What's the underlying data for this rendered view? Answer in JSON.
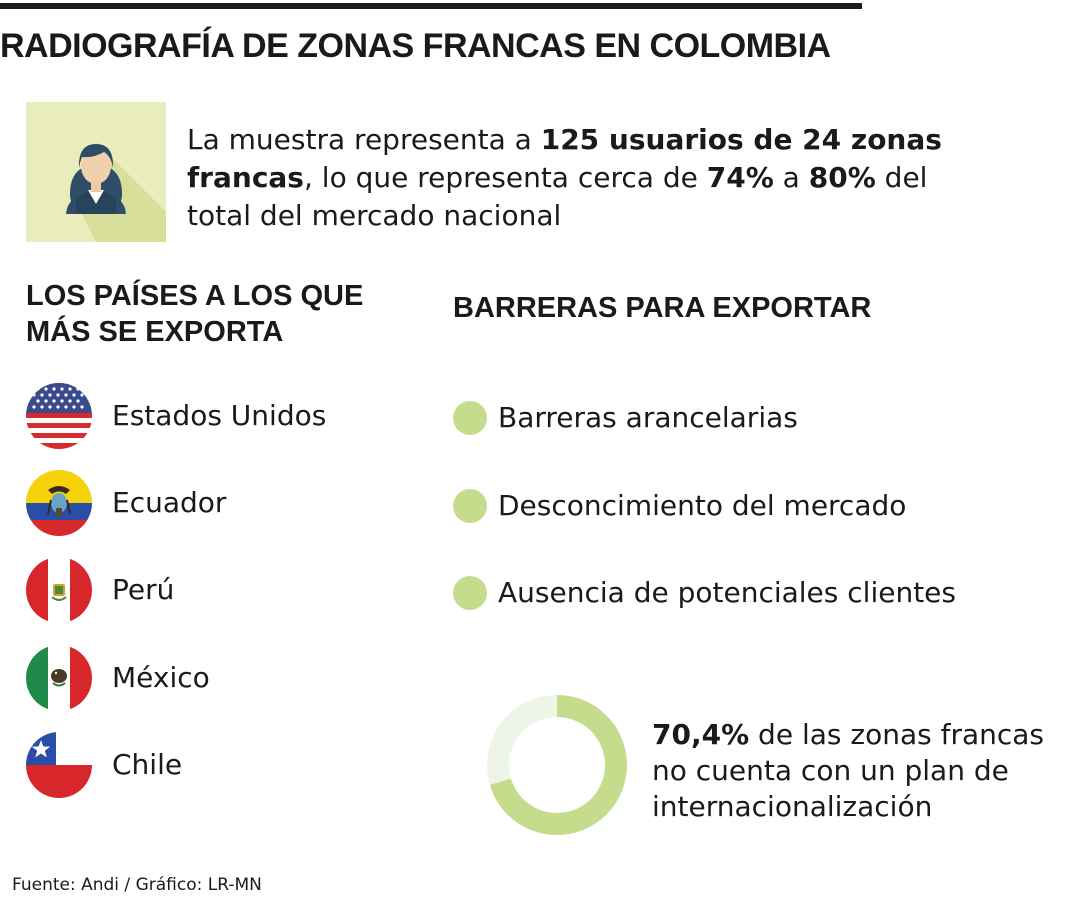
{
  "title": "RADIOGRAFÍA DE ZONAS FRANCAS EN COLOMBIA",
  "intro": {
    "icon": "user-icon",
    "parts": [
      {
        "text": "La muestra representa a ",
        "bold": false
      },
      {
        "text": "125 usuarios de 24 zonas francas",
        "bold": true
      },
      {
        "text": ", lo que representa cerca de ",
        "bold": false
      },
      {
        "text": "74%",
        "bold": true
      },
      {
        "text": " a ",
        "bold": false
      },
      {
        "text": "80%",
        "bold": true
      },
      {
        "text": " del total del mercado nacional",
        "bold": false
      }
    ]
  },
  "countries": {
    "heading": "LOS PAÍSES A LOS QUE MÁS SE EXPORTA",
    "items": [
      {
        "name": "Estados Unidos",
        "flag": "usa-flag-icon"
      },
      {
        "name": "Ecuador",
        "flag": "ecuador-flag-icon"
      },
      {
        "name": "Perú",
        "flag": "peru-flag-icon"
      },
      {
        "name": "México",
        "flag": "mexico-flag-icon"
      },
      {
        "name": "Chile",
        "flag": "chile-flag-icon"
      }
    ]
  },
  "barriers": {
    "heading": "BARRERAS PARA EXPORTAR",
    "bullet_color": "#c5dc8c",
    "items": [
      {
        "label": "Barreras arancelarias"
      },
      {
        "label": "Desconcimiento del mercado"
      },
      {
        "label": "Ausencia de potenciales clientes"
      }
    ]
  },
  "stat": {
    "value": "70,4%",
    "fraction": 0.704,
    "text": " de las zonas francas no cuenta con un plan de internacionalización",
    "ring_color": "#c5dc8c",
    "track_color": "#eef5e6"
  },
  "source": "Fuente: Andi / Gráfico: LR-MN",
  "colors": {
    "accent_green": "#c5dc8c",
    "tile_background": "#e9edbb",
    "text": "#1a1a1a"
  }
}
